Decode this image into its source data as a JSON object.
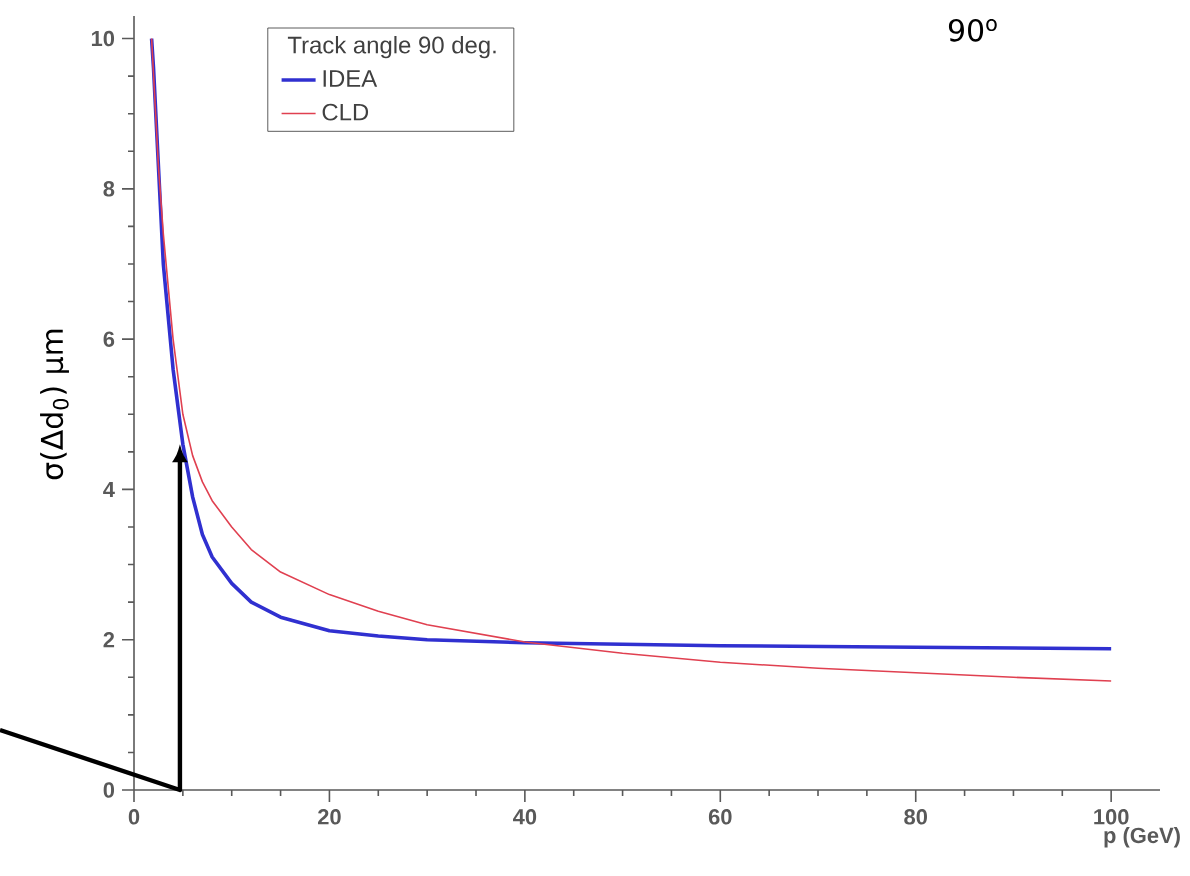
{
  "chart_data": {
    "type": "line",
    "xlabel": "p (GeV)",
    "ylabel": "σ(Δd$_{0}$) μm",
    "legend_title": "Track angle 90 deg.",
    "annotations": [
      "90$^{o}$"
    ],
    "xlim": [
      0,
      105
    ],
    "ylim": [
      0,
      10.3
    ],
    "xticks": [
      0,
      20,
      40,
      60,
      80,
      100
    ],
    "yticks": [
      0,
      2,
      4,
      6,
      8,
      10
    ],
    "legend": "top",
    "marker": "none",
    "line_style": "solid",
    "series": [
      {
        "name": "IDEA",
        "color": "#3030d0",
        "x": [
          1.8,
          2,
          3,
          4,
          5,
          6,
          7,
          8,
          10,
          12,
          15,
          20,
          25,
          30,
          40,
          50,
          60,
          80,
          100
        ],
        "values": [
          10,
          9.6,
          7.0,
          5.6,
          4.6,
          3.9,
          3.4,
          3.1,
          2.75,
          2.5,
          2.3,
          2.12,
          2.05,
          2.0,
          1.96,
          1.94,
          1.92,
          1.9,
          1.88
        ]
      },
      {
        "name": "CLD",
        "color": "#e04050",
        "x": [
          1.8,
          2.5,
          3,
          4,
          5,
          6,
          7,
          8,
          10,
          12,
          15,
          20,
          25,
          30,
          40,
          50,
          60,
          70,
          80,
          90,
          100
        ],
        "values": [
          10,
          8.3,
          7.4,
          6.0,
          5.0,
          4.45,
          4.1,
          3.85,
          3.5,
          3.2,
          2.9,
          2.6,
          2.38,
          2.2,
          1.97,
          1.82,
          1.7,
          1.62,
          1.56,
          1.5,
          1.45
        ]
      }
    ]
  }
}
